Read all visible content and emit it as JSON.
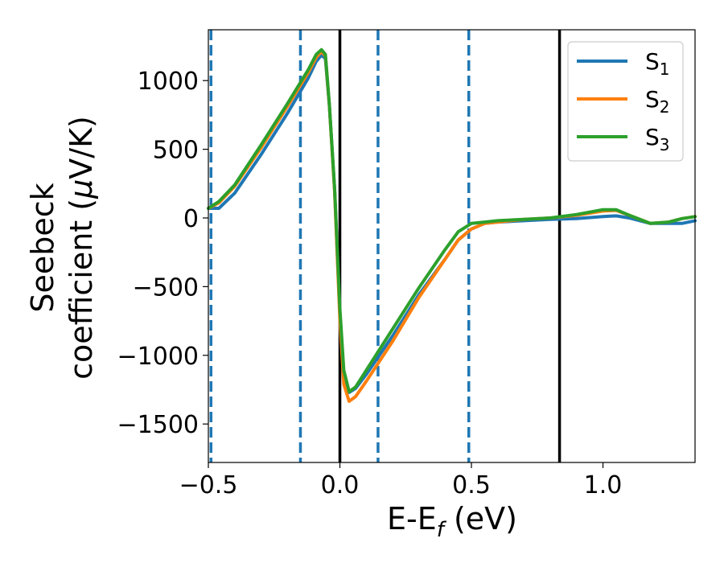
{
  "chart_data": {
    "type": "line",
    "xlabel": {
      "main": "E-E",
      "sub": "f",
      "tail": " (eV)"
    },
    "ylabel": {
      "line1": "Seebeck",
      "line2_pre": "coefficient  (",
      "mu": "μ",
      "line2_post": "V/K)"
    },
    "xlim": [
      -0.5,
      1.35
    ],
    "ylim": [
      -1780,
      1370
    ],
    "xticks": [
      -0.5,
      0.0,
      0.5,
      1.0
    ],
    "xtick_labels": [
      "−0.5",
      "0.0",
      "0.5",
      "1.0"
    ],
    "yticks": [
      -1500,
      -1000,
      -500,
      0,
      500,
      1000
    ],
    "ytick_labels": [
      "−1500",
      "−1000",
      "−500",
      "0",
      "500",
      "1000"
    ],
    "grid": false,
    "legend_position": "top-right",
    "vlines_dashed": [
      -0.49,
      -0.15,
      0.145,
      0.49
    ],
    "vlines_solid": [
      0.0,
      0.835
    ],
    "series": [
      {
        "name": "S1",
        "name_main": "S",
        "name_sub": "1",
        "color": "#1f77b4",
        "points": [
          [
            -0.5,
            70
          ],
          [
            -0.46,
            70
          ],
          [
            -0.4,
            180
          ],
          [
            -0.3,
            460
          ],
          [
            -0.2,
            760
          ],
          [
            -0.12,
            1020
          ],
          [
            -0.09,
            1140
          ],
          [
            -0.07,
            1185
          ],
          [
            -0.055,
            1160
          ],
          [
            -0.04,
            820
          ],
          [
            -0.02,
            200
          ],
          [
            0.0,
            -700
          ],
          [
            0.015,
            -1150
          ],
          [
            0.035,
            -1270
          ],
          [
            0.06,
            -1240
          ],
          [
            0.1,
            -1140
          ],
          [
            0.2,
            -860
          ],
          [
            0.3,
            -560
          ],
          [
            0.4,
            -300
          ],
          [
            0.45,
            -160
          ],
          [
            0.5,
            -80
          ],
          [
            0.55,
            -40
          ],
          [
            0.6,
            -30
          ],
          [
            0.7,
            -20
          ],
          [
            0.8,
            -10
          ],
          [
            0.9,
            -5
          ],
          [
            1.0,
            10
          ],
          [
            1.05,
            15
          ],
          [
            1.1,
            0
          ],
          [
            1.18,
            -40
          ],
          [
            1.25,
            -40
          ],
          [
            1.3,
            -40
          ],
          [
            1.35,
            -20
          ]
        ]
      },
      {
        "name": "S2",
        "name_main": "S",
        "name_sub": "2",
        "color": "#ff7f0e",
        "points": [
          [
            -0.5,
            70
          ],
          [
            -0.46,
            110
          ],
          [
            -0.4,
            230
          ],
          [
            -0.3,
            510
          ],
          [
            -0.2,
            810
          ],
          [
            -0.12,
            1060
          ],
          [
            -0.09,
            1170
          ],
          [
            -0.07,
            1210
          ],
          [
            -0.055,
            1180
          ],
          [
            -0.04,
            820
          ],
          [
            -0.02,
            190
          ],
          [
            0.0,
            -740
          ],
          [
            0.015,
            -1210
          ],
          [
            0.035,
            -1335
          ],
          [
            0.06,
            -1300
          ],
          [
            0.1,
            -1190
          ],
          [
            0.2,
            -900
          ],
          [
            0.3,
            -580
          ],
          [
            0.4,
            -300
          ],
          [
            0.45,
            -160
          ],
          [
            0.5,
            -80
          ],
          [
            0.55,
            -40
          ],
          [
            0.6,
            -30
          ],
          [
            0.7,
            -10
          ],
          [
            0.8,
            0
          ],
          [
            0.9,
            20
          ],
          [
            1.0,
            50
          ],
          [
            1.05,
            55
          ],
          [
            1.1,
            20
          ],
          [
            1.18,
            -40
          ],
          [
            1.25,
            -30
          ],
          [
            1.3,
            -5
          ],
          [
            1.35,
            10
          ]
        ]
      },
      {
        "name": "S3",
        "name_main": "S",
        "name_sub": "3",
        "color": "#2ca02c",
        "points": [
          [
            -0.5,
            70
          ],
          [
            -0.46,
            120
          ],
          [
            -0.4,
            240
          ],
          [
            -0.3,
            530
          ],
          [
            -0.2,
            830
          ],
          [
            -0.12,
            1080
          ],
          [
            -0.09,
            1190
          ],
          [
            -0.07,
            1225
          ],
          [
            -0.055,
            1190
          ],
          [
            -0.04,
            830
          ],
          [
            -0.02,
            210
          ],
          [
            0.0,
            -660
          ],
          [
            0.015,
            -1110
          ],
          [
            0.035,
            -1265
          ],
          [
            0.06,
            -1230
          ],
          [
            0.1,
            -1110
          ],
          [
            0.2,
            -810
          ],
          [
            0.3,
            -510
          ],
          [
            0.4,
            -230
          ],
          [
            0.45,
            -100
          ],
          [
            0.5,
            -40
          ],
          [
            0.55,
            -30
          ],
          [
            0.6,
            -20
          ],
          [
            0.7,
            -10
          ],
          [
            0.8,
            0
          ],
          [
            0.9,
            25
          ],
          [
            1.0,
            60
          ],
          [
            1.05,
            60
          ],
          [
            1.1,
            20
          ],
          [
            1.18,
            -40
          ],
          [
            1.25,
            -30
          ],
          [
            1.3,
            -5
          ],
          [
            1.35,
            10
          ]
        ]
      }
    ]
  }
}
